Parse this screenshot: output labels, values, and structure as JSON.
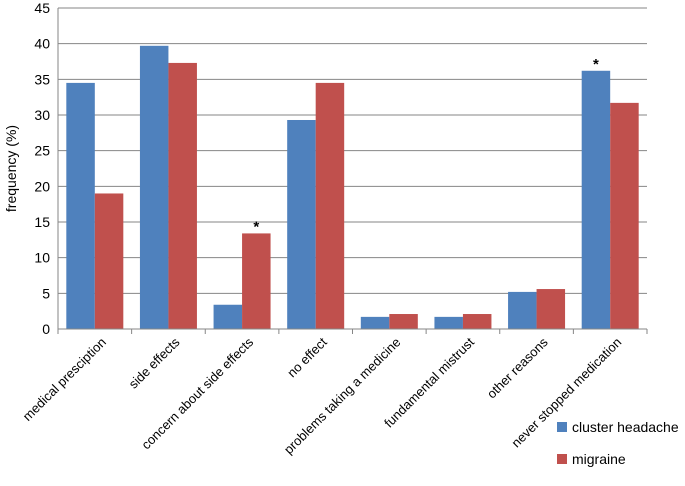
{
  "chart_data": {
    "type": "bar",
    "title": "",
    "xlabel": "",
    "ylabel": "frequency (%)",
    "ylim": [
      0,
      45
    ],
    "yticks": [
      0,
      5,
      10,
      15,
      20,
      25,
      30,
      35,
      40,
      45
    ],
    "grid": true,
    "legend_position": "bottom-right",
    "categories": [
      "medical presciption",
      "side effects",
      "concern about side effects",
      "no effect",
      "problems taking a medicine",
      "fundamental mistrust",
      "other reasons",
      "never stopped medication"
    ],
    "series": [
      {
        "name": "cluster headache",
        "color": "#4F81BD",
        "values": [
          34.5,
          39.7,
          3.4,
          29.3,
          1.7,
          1.7,
          5.2,
          36.2
        ]
      },
      {
        "name": "migraine",
        "color": "#C0504D",
        "values": [
          19.0,
          37.3,
          13.4,
          34.5,
          2.1,
          2.1,
          5.6,
          31.7
        ]
      }
    ],
    "annotations": [
      {
        "text": "*",
        "category_index": 2,
        "series_index": 1
      },
      {
        "text": "*",
        "category_index": 7,
        "series_index": 0
      }
    ]
  }
}
